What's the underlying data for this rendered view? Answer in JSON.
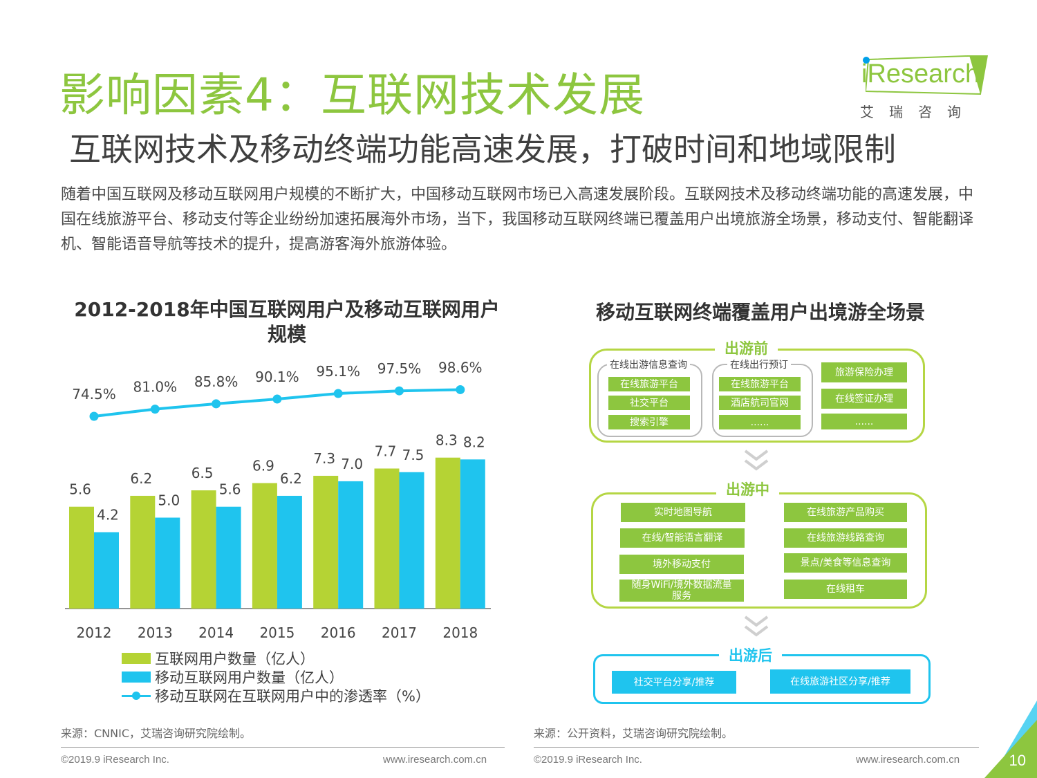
{
  "header": {
    "title": "影响因素4：互联网技术发展",
    "subtitle": "互联网技术及移动终端功能高速发展，打破时间和地域限制",
    "intro": "随着中国互联网及移动互联网用户规模的不断扩大，中国移动互联网市场已入高速发展阶段。互联网技术及移动终端功能的高速发展，中国在线旅游平台、移动支付等企业纷纷加速拓展海外市场，当下，我国移动互联网终端已覆盖用户出境旅游全场景，移动支付、智能翻译机、智能语音导航等技术的提升，提高游客海外旅游体验。"
  },
  "logo": {
    "brand": "iResearch",
    "tagline": "艾瑞咨询"
  },
  "chart_data": {
    "type": "bar",
    "title": "2012-2018年中国互联网用户及移动互联网用户规模",
    "categories": [
      "2012",
      "2013",
      "2014",
      "2015",
      "2016",
      "2017",
      "2018"
    ],
    "series": [
      {
        "name": "互联网用户数量（亿人）",
        "kind": "bar",
        "color": "#b5d334",
        "values": [
          5.6,
          6.2,
          6.5,
          6.9,
          7.3,
          7.7,
          8.3
        ],
        "labels": [
          "5.6",
          "6.2",
          "6.5",
          "6.9",
          "7.3",
          "7.7",
          "8.3"
        ]
      },
      {
        "name": "移动互联网用户数量（亿人）",
        "kind": "bar",
        "color": "#1fc4ee",
        "values": [
          4.2,
          5.0,
          5.6,
          6.2,
          7.0,
          7.5,
          8.2
        ],
        "labels": [
          "4.2",
          "5.0",
          "5.6",
          "6.2",
          "7.0",
          "7.5",
          "8.2"
        ]
      },
      {
        "name": "移动互联网在互联网用户中的渗透率（%）",
        "kind": "line",
        "color": "#1fc4ee",
        "values": [
          74.5,
          81.0,
          85.8,
          90.1,
          95.1,
          97.5,
          98.6
        ],
        "labels": [
          "74.5%",
          "81.0%",
          "85.8%",
          "90.1%",
          "95.1%",
          "97.5%",
          "98.6%"
        ]
      }
    ],
    "legend": "bottom-left",
    "grid": false
  },
  "diagram": {
    "title": "移动互联网终端覆盖用户出境游全场景",
    "before": {
      "label": "出游前",
      "group1": {
        "label": "在线出游信息查询",
        "items": [
          "在线旅游平台",
          "社交平台",
          "搜索引擎"
        ]
      },
      "group2": {
        "label": "在线出行预订",
        "items": [
          "在线旅游平台",
          "酒店航司官网",
          "......"
        ]
      },
      "group3": {
        "items": [
          "旅游保险办理",
          "在线签证办理",
          "......"
        ]
      }
    },
    "during": {
      "label": "出游中",
      "left": [
        "实时地图导航",
        "在线/智能语言翻译",
        "境外移动支付",
        "随身WiFi/境外数据流量服务"
      ],
      "right": [
        "在线旅游产品购买",
        "在线旅游线路查询",
        "景点/美食等信息查询",
        "在线租车"
      ]
    },
    "after": {
      "label": "出游后",
      "items": [
        "社交平台分享/推荐",
        "在线旅游社区分享/推荐"
      ]
    }
  },
  "footer": {
    "source_left": "来源：CNNIC，艾瑞咨询研究院绘制。",
    "source_right": "来源：公开资料，艾瑞咨询研究院绘制。",
    "copyright": "©2019.9 iResearch Inc.",
    "website": "www.iresearch.com.cn",
    "page": "10"
  },
  "colors": {
    "brand_green": "#8dc63f",
    "brand_blue": "#1fc4ee",
    "bar_green": "#b5d334"
  }
}
